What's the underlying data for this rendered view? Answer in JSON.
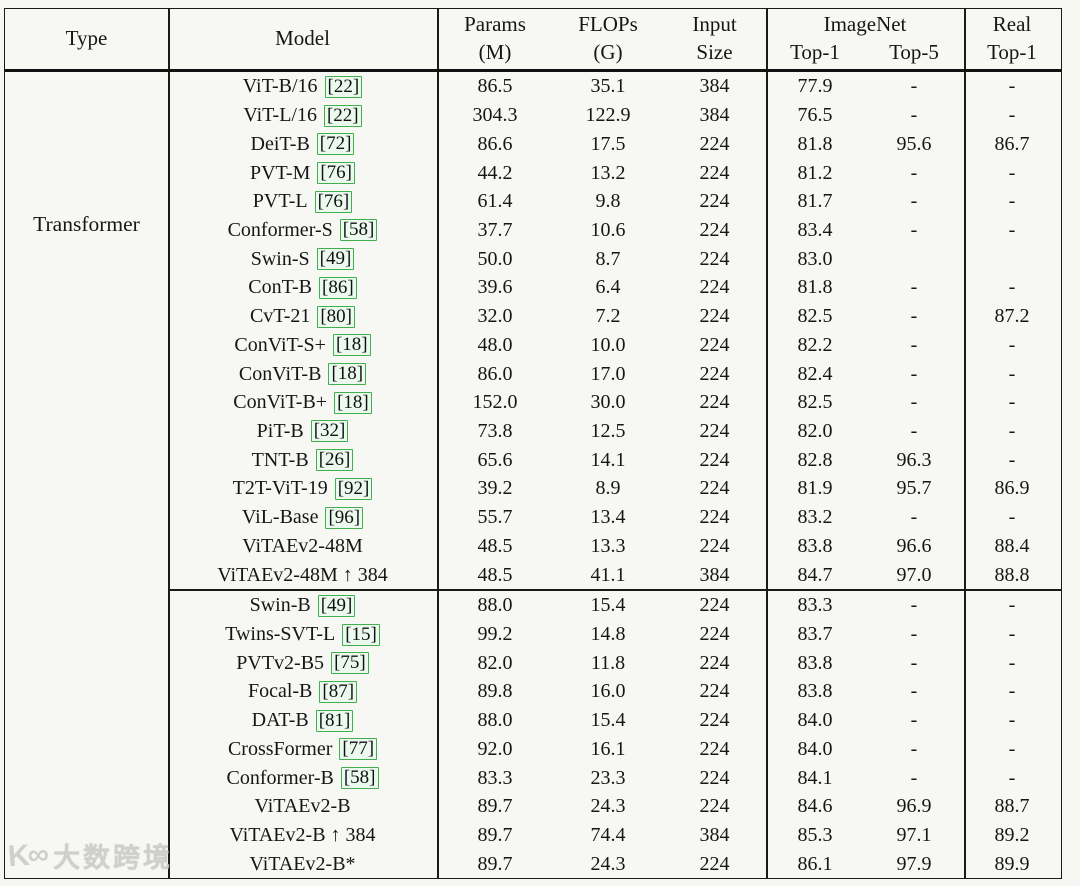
{
  "colors": {
    "cite_border": "#3fb04d",
    "cite_bg": "#ecf9ee",
    "rule": "#1a1a1a",
    "background": "#f7f7f4"
  },
  "watermark": {
    "logo": "K∞",
    "text": "大数跨境"
  },
  "table": {
    "header": {
      "type": "Type",
      "model": "Model",
      "params_line1": "Params",
      "params_line2": "(M)",
      "flops_line1": "FLOPs",
      "flops_line2": "(G)",
      "input_line1": "Input",
      "input_line2": "Size",
      "imagenet_group": "ImageNet",
      "imagenet_top1": "Top-1",
      "imagenet_top5": "Top-5",
      "real_line1": "Real",
      "real_line2": "Top-1"
    },
    "type_label": "Transformer",
    "sections": [
      {
        "rows": [
          {
            "model": "ViT-B/16",
            "cite": "22",
            "params": "86.5",
            "flops": "35.1",
            "input": "384",
            "top1": "77.9",
            "top5": "-",
            "real": "-"
          },
          {
            "model": "ViT-L/16",
            "cite": "22",
            "params": "304.3",
            "flops": "122.9",
            "input": "384",
            "top1": "76.5",
            "top5": "-",
            "real": "-"
          },
          {
            "model": "DeiT-B",
            "cite": "72",
            "params": "86.6",
            "flops": "17.5",
            "input": "224",
            "top1": "81.8",
            "top5": "95.6",
            "real": "86.7"
          },
          {
            "model": "PVT-M",
            "cite": "76",
            "params": "44.2",
            "flops": "13.2",
            "input": "224",
            "top1": "81.2",
            "top5": "-",
            "real": "-"
          },
          {
            "model": "PVT-L",
            "cite": "76",
            "params": "61.4",
            "flops": "9.8",
            "input": "224",
            "top1": "81.7",
            "top5": "-",
            "real": "-"
          },
          {
            "model": "Conformer-S",
            "cite": "58",
            "params": "37.7",
            "flops": "10.6",
            "input": "224",
            "top1": "83.4",
            "top5": "-",
            "real": "-"
          },
          {
            "model": "Swin-S",
            "cite": "49",
            "params": "50.0",
            "flops": "8.7",
            "input": "224",
            "top1": "83.0",
            "top5": "",
            "real": ""
          },
          {
            "model": "ConT-B",
            "cite": "86",
            "params": "39.6",
            "flops": "6.4",
            "input": "224",
            "top1": "81.8",
            "top5": "-",
            "real": "-"
          },
          {
            "model": "CvT-21",
            "cite": "80",
            "params": "32.0",
            "flops": "7.2",
            "input": "224",
            "top1": "82.5",
            "top5": "-",
            "real": "87.2"
          },
          {
            "model": "ConViT-S+",
            "cite": "18",
            "params": "48.0",
            "flops": "10.0",
            "input": "224",
            "top1": "82.2",
            "top5": "-",
            "real": "-"
          },
          {
            "model": "ConViT-B",
            "cite": "18",
            "params": "86.0",
            "flops": "17.0",
            "input": "224",
            "top1": "82.4",
            "top5": "-",
            "real": "-"
          },
          {
            "model": "ConViT-B+",
            "cite": "18",
            "params": "152.0",
            "flops": "30.0",
            "input": "224",
            "top1": "82.5",
            "top5": "-",
            "real": "-"
          },
          {
            "model": "PiT-B",
            "cite": "32",
            "params": "73.8",
            "flops": "12.5",
            "input": "224",
            "top1": "82.0",
            "top5": "-",
            "real": "-"
          },
          {
            "model": "TNT-B",
            "cite": "26",
            "params": "65.6",
            "flops": "14.1",
            "input": "224",
            "top1": "82.8",
            "top5": "96.3",
            "real": "-"
          },
          {
            "model": "T2T-ViT-19",
            "cite": "92",
            "params": "39.2",
            "flops": "8.9",
            "input": "224",
            "top1": "81.9",
            "top5": "95.7",
            "real": "86.9"
          },
          {
            "model": "ViL-Base",
            "cite": "96",
            "params": "55.7",
            "flops": "13.4",
            "input": "224",
            "top1": "83.2",
            "top5": "-",
            "real": "-"
          },
          {
            "model": "ViTAEv2-48M",
            "cite": "",
            "params": "48.5",
            "flops": "13.3",
            "input": "224",
            "top1": "83.8",
            "top5": "96.6",
            "real": "88.4"
          },
          {
            "model": "ViTAEv2-48M ↑ 384",
            "cite": "",
            "params": "48.5",
            "flops": "41.1",
            "input": "384",
            "top1": "84.7",
            "top5": "97.0",
            "real": "88.8"
          }
        ]
      },
      {
        "rows": [
          {
            "model": "Swin-B",
            "cite": "49",
            "params": "88.0",
            "flops": "15.4",
            "input": "224",
            "top1": "83.3",
            "top5": "-",
            "real": "-"
          },
          {
            "model": "Twins-SVT-L",
            "cite": "15",
            "params": "99.2",
            "flops": "14.8",
            "input": "224",
            "top1": "83.7",
            "top5": "-",
            "real": "-"
          },
          {
            "model": "PVTv2-B5",
            "cite": "75",
            "params": "82.0",
            "flops": "11.8",
            "input": "224",
            "top1": "83.8",
            "top5": "-",
            "real": "-"
          },
          {
            "model": "Focal-B",
            "cite": "87",
            "params": "89.8",
            "flops": "16.0",
            "input": "224",
            "top1": "83.8",
            "top5": "-",
            "real": "-"
          },
          {
            "model": "DAT-B",
            "cite": "81",
            "params": "88.0",
            "flops": "15.4",
            "input": "224",
            "top1": "84.0",
            "top5": "-",
            "real": "-"
          },
          {
            "model": "CrossFormer",
            "cite": "77",
            "params": "92.0",
            "flops": "16.1",
            "input": "224",
            "top1": "84.0",
            "top5": "-",
            "real": "-"
          },
          {
            "model": "Conformer-B",
            "cite": "58",
            "params": "83.3",
            "flops": "23.3",
            "input": "224",
            "top1": "84.1",
            "top5": "-",
            "real": "-"
          },
          {
            "model": "ViTAEv2-B",
            "cite": "",
            "params": "89.7",
            "flops": "24.3",
            "input": "224",
            "top1": "84.6",
            "top5": "96.9",
            "real": "88.7"
          },
          {
            "model": "ViTAEv2-B ↑ 384",
            "cite": "",
            "params": "89.7",
            "flops": "74.4",
            "input": "384",
            "top1": "85.3",
            "top5": "97.1",
            "real": "89.2"
          },
          {
            "model": "ViTAEv2-B*",
            "cite": "",
            "params": "89.7",
            "flops": "24.3",
            "input": "224",
            "top1": "86.1",
            "top5": "97.9",
            "real": "89.9"
          }
        ]
      }
    ]
  }
}
